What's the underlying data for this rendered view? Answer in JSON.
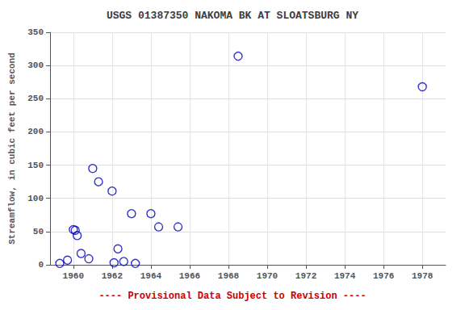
{
  "chart_data": {
    "type": "scatter",
    "title": "USGS 01387350 NAKOMA BK AT SLOATSBURG NY",
    "ylabel": "Streamflow, in cubic feet per second",
    "x": [
      1959.3,
      1959.7,
      1960.0,
      1960.1,
      1960.2,
      1960.4,
      1960.8,
      1961.0,
      1961.3,
      1962.0,
      1962.1,
      1962.3,
      1962.6,
      1963.0,
      1963.2,
      1964.0,
      1964.4,
      1965.4,
      1968.5,
      1978.0
    ],
    "values": [
      2,
      7,
      53,
      52,
      44,
      17,
      9,
      145,
      125,
      111,
      3,
      24,
      5,
      77,
      2,
      77,
      57,
      57,
      314,
      268
    ],
    "xlim": [
      1958.8,
      1979.2
    ],
    "ylim": [
      0,
      350
    ],
    "xticks": [
      1960,
      1962,
      1964,
      1966,
      1968,
      1970,
      1972,
      1974,
      1976,
      1978
    ],
    "yticks": [
      0,
      50,
      100,
      150,
      200,
      250,
      300,
      350
    ],
    "color": "#0000bb",
    "marker": "open circle",
    "grid": true,
    "annotations": [
      {
        "text": "---- Provisional Data Subject to Revision ----",
        "color": "#cc0000"
      }
    ]
  }
}
